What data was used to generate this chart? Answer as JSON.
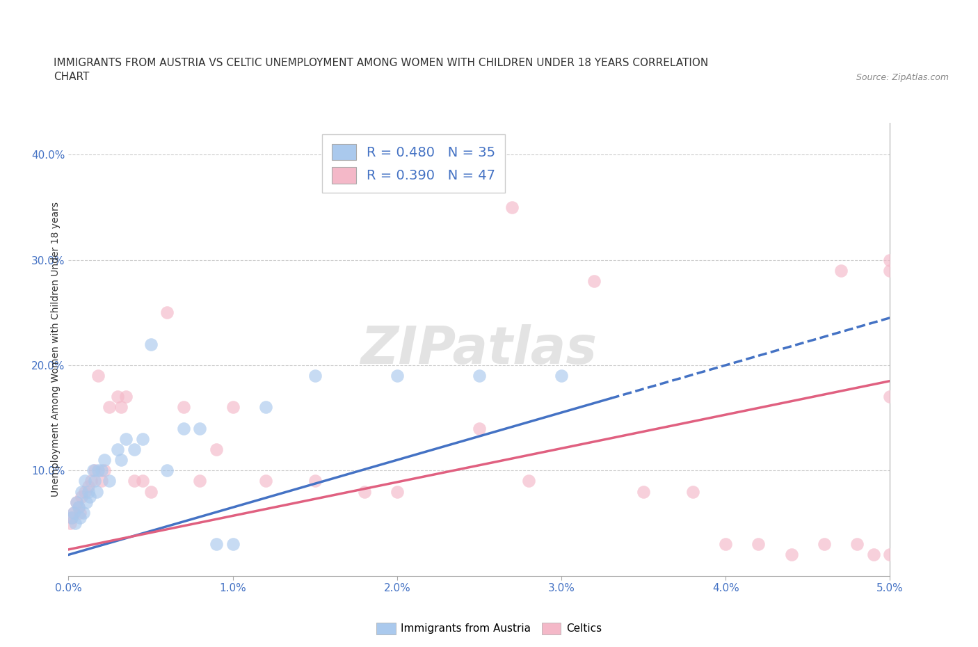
{
  "title_line1": "IMMIGRANTS FROM AUSTRIA VS CELTIC UNEMPLOYMENT AMONG WOMEN WITH CHILDREN UNDER 18 YEARS CORRELATION",
  "title_line2": "CHART",
  "source_text": "Source: ZipAtlas.com",
  "ylabel": "Unemployment Among Women with Children Under 18 years",
  "xlim": [
    0.0,
    0.05
  ],
  "ylim": [
    0.0,
    0.43
  ],
  "xtick_labels": [
    "0.0%",
    "1.0%",
    "2.0%",
    "3.0%",
    "4.0%",
    "5.0%"
  ],
  "xtick_vals": [
    0.0,
    0.01,
    0.02,
    0.03,
    0.04,
    0.05
  ],
  "ytick_labels": [
    "10.0%",
    "20.0%",
    "30.0%",
    "40.0%"
  ],
  "ytick_vals": [
    0.1,
    0.2,
    0.3,
    0.4
  ],
  "color_blue": "#aac9ed",
  "color_pink": "#f4b8c8",
  "color_blue_line": "#4472c4",
  "color_pink_line": "#e06080",
  "watermark_text": "ZIPatlas",
  "austria_x": [
    0.0002,
    0.0003,
    0.0004,
    0.0005,
    0.0006,
    0.0007,
    0.0008,
    0.0009,
    0.001,
    0.0011,
    0.0012,
    0.0013,
    0.0015,
    0.0016,
    0.0017,
    0.0018,
    0.002,
    0.0022,
    0.0025,
    0.003,
    0.0032,
    0.0035,
    0.004,
    0.0045,
    0.005,
    0.006,
    0.007,
    0.008,
    0.009,
    0.01,
    0.012,
    0.015,
    0.02,
    0.025,
    0.03
  ],
  "austria_y": [
    0.055,
    0.06,
    0.05,
    0.07,
    0.065,
    0.055,
    0.08,
    0.06,
    0.09,
    0.07,
    0.08,
    0.075,
    0.1,
    0.09,
    0.08,
    0.1,
    0.1,
    0.11,
    0.09,
    0.12,
    0.11,
    0.13,
    0.12,
    0.13,
    0.22,
    0.1,
    0.14,
    0.14,
    0.03,
    0.03,
    0.16,
    0.19,
    0.19,
    0.19,
    0.19
  ],
  "celtics_x": [
    0.0001,
    0.0002,
    0.0003,
    0.0005,
    0.0006,
    0.0007,
    0.0008,
    0.001,
    0.0012,
    0.0014,
    0.0016,
    0.0018,
    0.002,
    0.0022,
    0.0025,
    0.003,
    0.0032,
    0.0035,
    0.004,
    0.0045,
    0.005,
    0.006,
    0.007,
    0.008,
    0.009,
    0.01,
    0.012,
    0.015,
    0.018,
    0.02,
    0.025,
    0.027,
    0.028,
    0.032,
    0.035,
    0.038,
    0.04,
    0.042,
    0.044,
    0.046,
    0.047,
    0.048,
    0.049,
    0.05,
    0.05,
    0.05,
    0.05
  ],
  "celtics_y": [
    0.05,
    0.055,
    0.06,
    0.07,
    0.065,
    0.06,
    0.075,
    0.08,
    0.085,
    0.09,
    0.1,
    0.19,
    0.09,
    0.1,
    0.16,
    0.17,
    0.16,
    0.17,
    0.09,
    0.09,
    0.08,
    0.25,
    0.16,
    0.09,
    0.12,
    0.16,
    0.09,
    0.09,
    0.08,
    0.08,
    0.14,
    0.35,
    0.09,
    0.28,
    0.08,
    0.08,
    0.03,
    0.03,
    0.02,
    0.03,
    0.29,
    0.03,
    0.02,
    0.17,
    0.29,
    0.3,
    0.02
  ],
  "austria_line_x": [
    0.0,
    0.05
  ],
  "austria_line_y": [
    0.02,
    0.245
  ],
  "celtics_line_x": [
    0.0,
    0.05
  ],
  "celtics_line_y": [
    0.025,
    0.185
  ]
}
